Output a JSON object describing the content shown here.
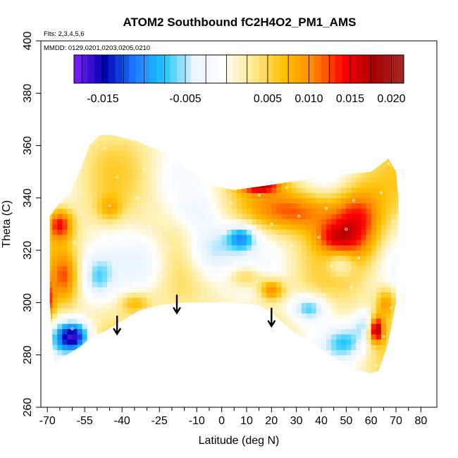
{
  "chart_data": {
    "type": "heatmap",
    "title": "ATOM2 Southbound fC2H4O2_PM1_AMS",
    "subtitle_flights": "Flts: 2,3,4,5,6",
    "subtitle_dates": "MMDD: 0129,0201,0203,0205,0210",
    "xlabel": "Latitude (deg N)",
    "ylabel": "Theta (C)",
    "xlim": [
      -70,
      80
    ],
    "ylim": [
      260,
      400
    ],
    "x_ticks": [
      -70,
      -55,
      -40,
      -25,
      -10,
      0,
      10,
      20,
      30,
      40,
      50,
      60,
      70,
      80
    ],
    "x_tick_labels": [
      "-70",
      "-55",
      "-40",
      "-25",
      "-10",
      "0",
      "10",
      "20",
      "30",
      "40",
      "50",
      "60",
      "70",
      "80"
    ],
    "x_minor_ticks": [
      -65,
      -60,
      -50,
      -45,
      -35,
      -30,
      -20,
      -15,
      -5,
      5,
      15,
      25,
      35,
      45,
      55,
      65,
      75
    ],
    "y_ticks": [
      260,
      280,
      300,
      320,
      340,
      360,
      380,
      400
    ],
    "y_tick_labels": [
      "260",
      "280",
      "300",
      "320",
      "340",
      "360",
      "380",
      "400"
    ],
    "colorbar": {
      "range": [
        -0.0185,
        0.0215
      ],
      "ticks": [
        -0.015,
        -0.005,
        0.005,
        0.01,
        0.015,
        0.02
      ],
      "tick_labels": [
        "-0.015",
        "-0.005",
        "0.005",
        "0.010",
        "0.015",
        "0.020"
      ],
      "colors": [
        "#7f1fff",
        "#0000b0",
        "#1e78ff",
        "#1ec8ff",
        "#e8f4ff",
        "#ffffff",
        "#ffe88a",
        "#ffc000",
        "#ff8a00",
        "#ff0000",
        "#a80000",
        "#a52a2a"
      ]
    },
    "arrows": [
      {
        "lat": -42,
        "theta": 295
      },
      {
        "lat": -18,
        "theta": 303
      },
      {
        "lat": 20,
        "theta": 298
      }
    ],
    "grid": false,
    "legend": "colorbar-top"
  }
}
